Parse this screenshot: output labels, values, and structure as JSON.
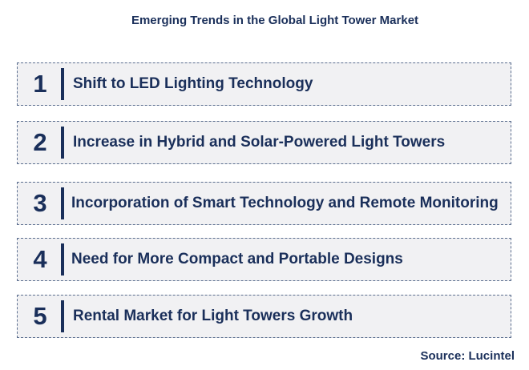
{
  "title": "Emerging Trends in the Global Light Tower Market",
  "trends": [
    {
      "number": "1",
      "label": "Shift to LED Lighting Technology"
    },
    {
      "number": "2",
      "label": "Increase in Hybrid and Solar-Powered Light Towers"
    },
    {
      "number": "3",
      "label": "Incorporation of Smart Technology and Remote Monitoring"
    },
    {
      "number": "4",
      "label": "Need for More Compact and Portable Designs"
    },
    {
      "number": "5",
      "label": "Rental Market for Light Towers Growth"
    }
  ],
  "source": "Source: Lucintel",
  "colors": {
    "text": "#1a2f5a",
    "box_fill": "#f1f1f3",
    "box_border": "#5a6d8e"
  }
}
